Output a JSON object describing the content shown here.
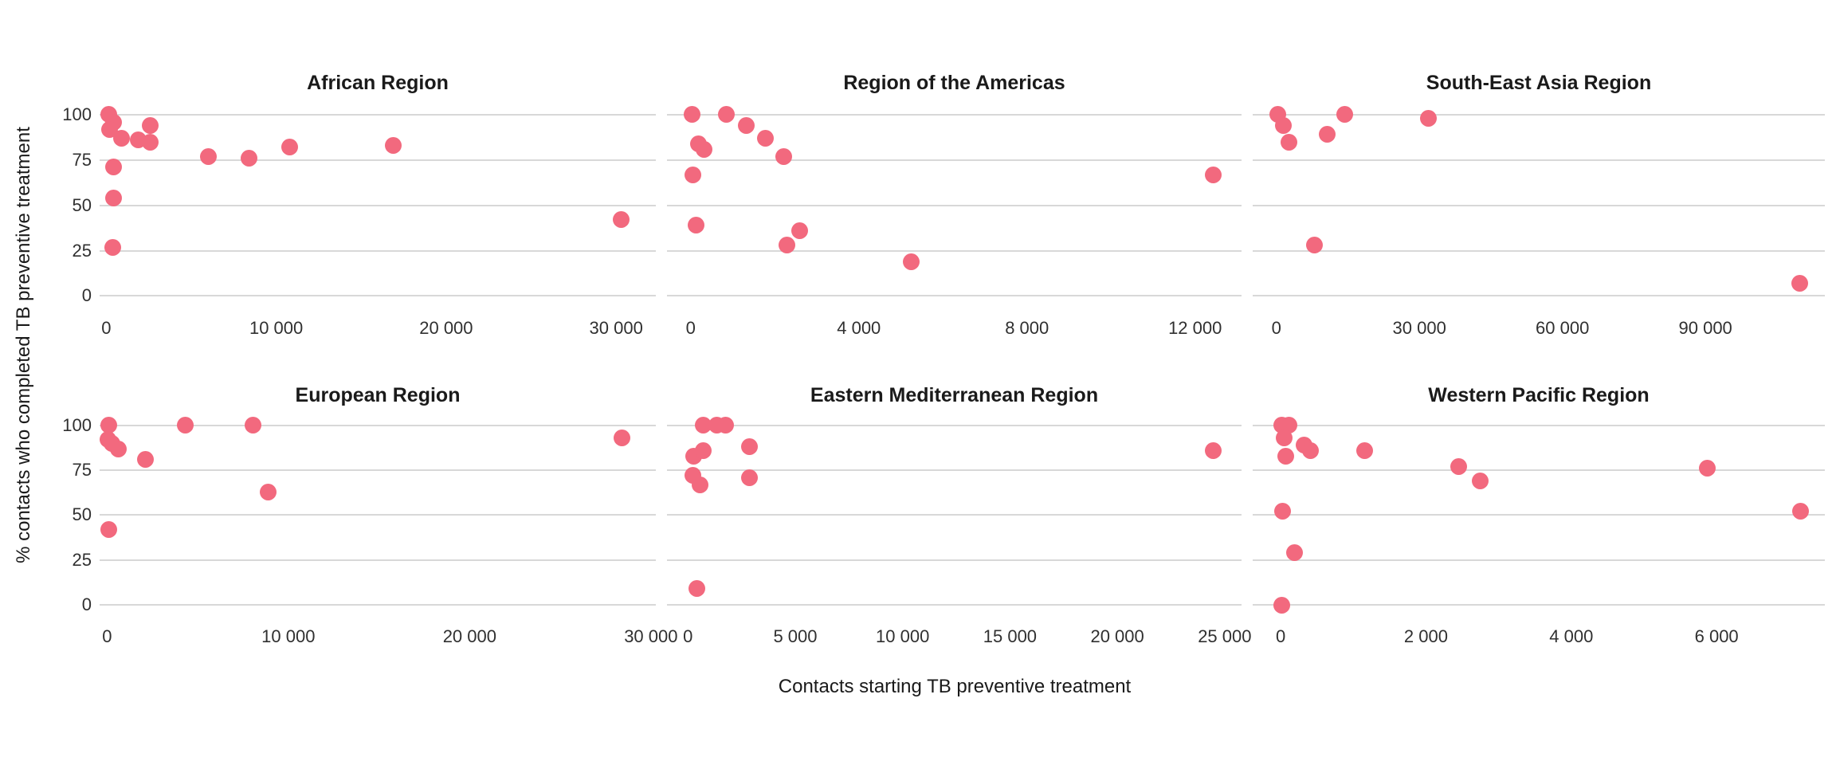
{
  "figure": {
    "y_axis_title": "% contacts who completed TB preventive treatment",
    "x_axis_title": "Contacts starting TB preventive treatment",
    "y_ticks": [
      {
        "v": 100,
        "label": "100"
      },
      {
        "v": 75,
        "label": "75"
      },
      {
        "v": 50,
        "label": "50"
      },
      {
        "v": 25,
        "label": "25"
      },
      {
        "v": 0,
        "label": "0"
      }
    ],
    "colors": {
      "dot": "#f2697e",
      "gridline": "#d8d8d8",
      "facet_title": "#1a1a1a",
      "tick_label": "#303030"
    }
  },
  "chart_data": [
    {
      "type": "scatter",
      "title": "African Region",
      "xlabel": "Contacts starting TB preventive treatment",
      "ylabel": "% contacts who completed TB preventive treatment",
      "xlim": [
        -390,
        32335
      ],
      "ylim": [
        -5.25,
        105.25
      ],
      "grid": "horizontal-only",
      "x_ticks": [
        {
          "v": 0,
          "label": "0"
        },
        {
          "v": 10000,
          "label": "10 000"
        },
        {
          "v": 20000,
          "label": "20 000"
        },
        {
          "v": 30000,
          "label": "30 000"
        }
      ],
      "points": [
        [
          150,
          100
        ],
        [
          450,
          96
        ],
        [
          200,
          92
        ],
        [
          900,
          87
        ],
        [
          1900,
          86
        ],
        [
          2600,
          94
        ],
        [
          2600,
          85
        ],
        [
          6000,
          77
        ],
        [
          8400,
          76
        ],
        [
          10800,
          82
        ],
        [
          16900,
          83
        ],
        [
          450,
          71
        ],
        [
          450,
          54
        ],
        [
          400,
          27
        ],
        [
          30300,
          42
        ]
      ]
    },
    {
      "type": "scatter",
      "title": "Region of the Americas",
      "xlabel": "Contacts starting TB preventive treatment",
      "ylabel": "% contacts who completed TB preventive treatment",
      "xlim": [
        -565,
        13105
      ],
      "ylim": [
        -5.25,
        105.25
      ],
      "grid": "horizontal-only",
      "x_ticks": [
        {
          "v": 0,
          "label": "0"
        },
        {
          "v": 4000,
          "label": "4 000"
        },
        {
          "v": 8000,
          "label": "8 000"
        },
        {
          "v": 12000,
          "label": "12 000"
        }
      ],
      "points": [
        [
          40,
          100
        ],
        [
          850,
          100
        ],
        [
          1330,
          94
        ],
        [
          1770,
          87
        ],
        [
          190,
          84
        ],
        [
          310,
          81
        ],
        [
          2210,
          77
        ],
        [
          60,
          67
        ],
        [
          120,
          39
        ],
        [
          2600,
          36
        ],
        [
          2290,
          28
        ],
        [
          5240,
          19
        ],
        [
          12440,
          67
        ]
      ]
    },
    {
      "type": "scatter",
      "title": "South-East Asia Region",
      "xlabel": "Contacts starting TB preventive treatment",
      "ylabel": "% contacts who completed TB preventive treatment",
      "xlim": [
        -4965,
        115045
      ],
      "ylim": [
        -5.25,
        105.25
      ],
      "grid": "horizontal-only",
      "x_ticks": [
        {
          "v": 0,
          "label": "0"
        },
        {
          "v": 30000,
          "label": "30 000"
        },
        {
          "v": 60000,
          "label": "60 000"
        },
        {
          "v": 90000,
          "label": "90 000"
        }
      ],
      "points": [
        [
          270,
          100
        ],
        [
          1390,
          94
        ],
        [
          2670,
          85
        ],
        [
          10600,
          89
        ],
        [
          14300,
          100
        ],
        [
          31900,
          98
        ],
        [
          7950,
          28
        ],
        [
          109700,
          7
        ]
      ]
    },
    {
      "type": "scatter",
      "title": "European Region",
      "xlabel": "Contacts starting TB preventive treatment",
      "ylabel": "% contacts who completed TB preventive treatment",
      "xlim": [
        -410,
        30270
      ],
      "ylim": [
        -5.25,
        105.25
      ],
      "grid": "horizontal-only",
      "x_ticks": [
        {
          "v": 0,
          "label": "0"
        },
        {
          "v": 10000,
          "label": "10 000"
        },
        {
          "v": 20000,
          "label": "20 000"
        },
        {
          "v": 30000,
          "label": "30 000"
        }
      ],
      "points": [
        [
          80,
          100
        ],
        [
          30,
          92
        ],
        [
          250,
          90
        ],
        [
          620,
          87
        ],
        [
          2110,
          81
        ],
        [
          4310,
          100
        ],
        [
          8040,
          100
        ],
        [
          8900,
          63
        ],
        [
          110,
          42
        ],
        [
          28400,
          93
        ]
      ]
    },
    {
      "type": "scatter",
      "title": "Eastern Mediterranean Region",
      "xlabel": "Contacts starting TB preventive treatment",
      "ylabel": "% contacts who completed TB preventive treatment",
      "xlim": [
        -975,
        25785
      ],
      "ylim": [
        -5.25,
        105.25
      ],
      "grid": "horizontal-only",
      "x_ticks": [
        {
          "v": 0,
          "label": "0"
        },
        {
          "v": 5000,
          "label": "5 000"
        },
        {
          "v": 10000,
          "label": "10 000"
        },
        {
          "v": 15000,
          "label": "15 000"
        },
        {
          "v": 20000,
          "label": "20 000"
        },
        {
          "v": 25000,
          "label": "25 000"
        }
      ],
      "points": [
        [
          700,
          100
        ],
        [
          1340,
          100
        ],
        [
          1760,
          100
        ],
        [
          250,
          83
        ],
        [
          700,
          86
        ],
        [
          2850,
          88
        ],
        [
          220,
          72
        ],
        [
          580,
          67
        ],
        [
          2850,
          71
        ],
        [
          400,
          9
        ],
        [
          24450,
          86
        ]
      ]
    },
    {
      "type": "scatter",
      "title": "Western Pacific Region",
      "xlabel": "Contacts starting TB preventive treatment",
      "ylabel": "% contacts who completed TB preventive treatment",
      "xlim": [
        -385,
        7490
      ],
      "ylim": [
        -5.25,
        105.25
      ],
      "grid": "horizontal-only",
      "x_ticks": [
        {
          "v": 0,
          "label": "0"
        },
        {
          "v": 2000,
          "label": "2 000"
        },
        {
          "v": 4000,
          "label": "4 000"
        },
        {
          "v": 6000,
          "label": "6 000"
        }
      ],
      "points": [
        [
          20,
          100
        ],
        [
          110,
          100
        ],
        [
          50,
          93
        ],
        [
          70,
          83
        ],
        [
          320,
          89
        ],
        [
          410,
          86
        ],
        [
          1160,
          86
        ],
        [
          2450,
          77
        ],
        [
          2750,
          69
        ],
        [
          30,
          52
        ],
        [
          190,
          29
        ],
        [
          20,
          0
        ],
        [
          5870,
          76
        ],
        [
          7150,
          52
        ]
      ]
    }
  ]
}
